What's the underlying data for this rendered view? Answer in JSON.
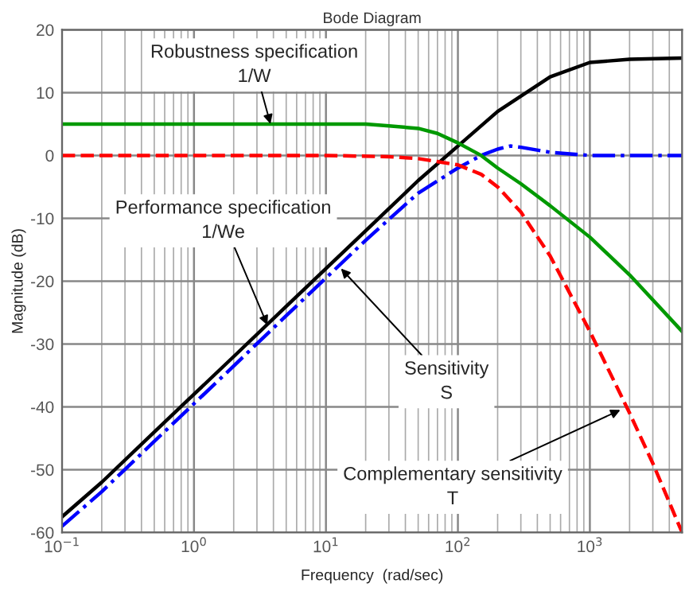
{
  "chart_data": {
    "type": "line",
    "title": "Bode Diagram",
    "xlabel": "Frequency  (rad/sec)",
    "ylabel": "Magnitude (dB)",
    "log": "x",
    "grid": true,
    "xlim": [
      0.1,
      5000
    ],
    "xticks": [
      {
        "value": 0.1,
        "label": "10$^{−1}$"
      },
      {
        "value": 1,
        "label": "10$^{0}$"
      },
      {
        "value": 10,
        "label": "10$^{1}$"
      },
      {
        "value": 100,
        "label": "10$^{2}$"
      },
      {
        "value": 1000,
        "label": "10$^{3}$"
      }
    ],
    "ylim": [
      -60,
      20
    ],
    "yticks": [
      -60,
      -50,
      -40,
      -30,
      -20,
      -10,
      0,
      10,
      20
    ],
    "series": [
      {
        "color": "#000000",
        "line_style": "solid",
        "x": [
          0.1,
          0.2,
          0.5,
          1,
          2,
          5,
          10,
          20,
          50,
          100,
          200,
          500,
          1000,
          2000,
          5000
        ],
        "values": [
          -57.5,
          -52,
          -44,
          -38,
          -32,
          -24,
          -18,
          -12,
          -4,
          1.5,
          7,
          12.5,
          14.8,
          15.3,
          15.5
        ]
      },
      {
        "color": "#0000ff",
        "line_style": "dashdot",
        "x": [
          0.1,
          0.2,
          0.5,
          1,
          2,
          5,
          10,
          20,
          50,
          100,
          150,
          200,
          250,
          300,
          500,
          1000,
          5000
        ],
        "values": [
          -59,
          -53.5,
          -45.5,
          -39.5,
          -33.5,
          -25.5,
          -19.5,
          -13.5,
          -6,
          -2,
          0,
          1,
          1.5,
          1.3,
          0.5,
          0,
          0
        ]
      },
      {
        "color": "#ff0000",
        "line_style": "dashed",
        "x": [
          0.1,
          10,
          30,
          50,
          100,
          150,
          200,
          300,
          500,
          1000,
          2000,
          3000,
          5000
        ],
        "values": [
          0,
          0,
          -0.2,
          -0.5,
          -1.5,
          -3,
          -5,
          -9,
          -16,
          -28,
          -41,
          -49,
          -60
        ]
      },
      {
        "color": "#009900",
        "line_style": "solid",
        "x": [
          0.1,
          20,
          30,
          50,
          70,
          100,
          150,
          200,
          300,
          500,
          1000,
          2000,
          5000
        ],
        "values": [
          5,
          5,
          4.7,
          4.3,
          3.5,
          2,
          0,
          -2,
          -4.5,
          -8,
          -13,
          -19,
          -28
        ]
      }
    ],
    "annotations": [
      {
        "text": "Robustness specification\n1/W",
        "x": 3.8,
        "y": 5
      },
      {
        "text": "Performance specification\n1/We",
        "x": 3.6,
        "y": -27
      },
      {
        "text": "Sensitivity\nS",
        "x": 13,
        "y": -18
      },
      {
        "text": "Complementary sensitivity\nT",
        "x": 1700,
        "y": -40.5
      }
    ]
  }
}
